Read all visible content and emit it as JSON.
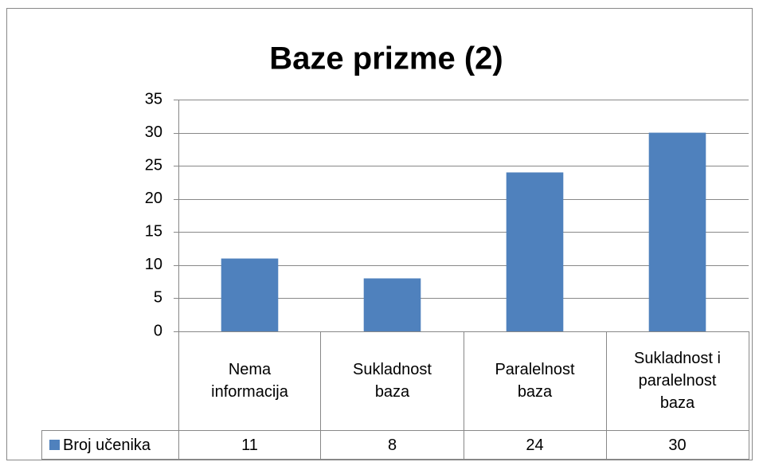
{
  "chart_data": {
    "type": "bar",
    "title": "Baze prizme (2)",
    "categories": [
      "Nema informacija",
      "Sukladnost baza",
      "Paralelnost baza",
      "Sukladnost i paralelnost baza"
    ],
    "series": [
      {
        "name": "Broj učenika",
        "color": "#4f81bd",
        "values": [
          11,
          8,
          24,
          30
        ]
      }
    ],
    "ylim": [
      0,
      35
    ],
    "yticks": [
      0,
      5,
      10,
      15,
      20,
      25,
      30,
      35
    ],
    "grid": true
  }
}
